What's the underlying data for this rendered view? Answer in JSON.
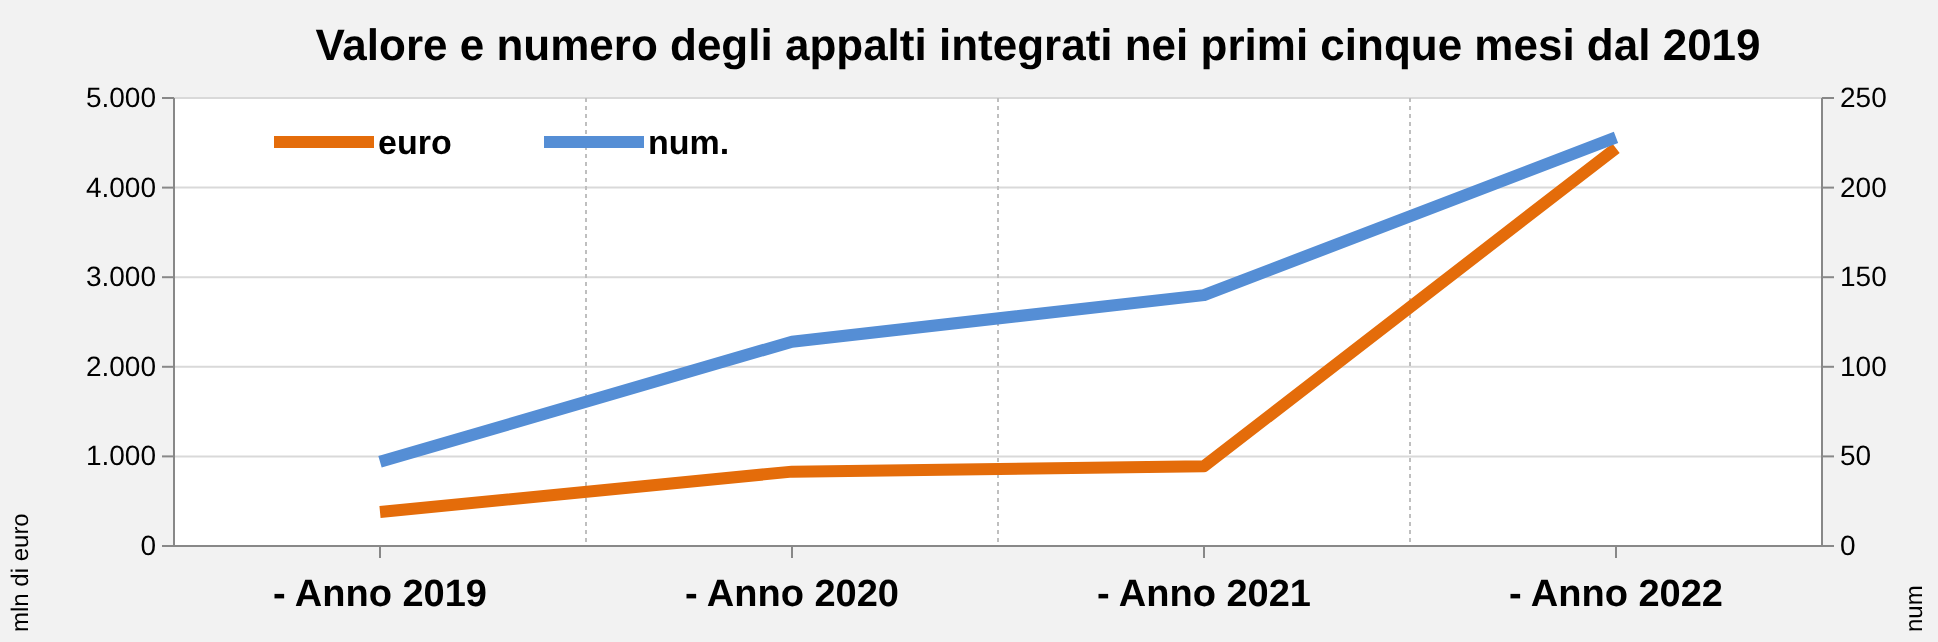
{
  "chart_data": {
    "type": "line",
    "title": "Valore e numero degli appalti integrati nei primi cinque mesi dal 2019",
    "ylabel": "mln di euro",
    "y2label": "num",
    "categories": [
      "- Anno 2019",
      "- Anno 2020",
      "- Anno 2021",
      "- Anno 2022"
    ],
    "series": [
      {
        "name": "euro",
        "color": "#e46c0a",
        "values": [
          380,
          830,
          890,
          4440
        ]
      },
      {
        "name": "num.",
        "color": "#558ed5",
        "axis": "y2",
        "values": [
          47,
          114,
          140,
          228
        ]
      }
    ],
    "ylim": [
      0,
      5000
    ],
    "yticks": [
      0,
      {
        "value": 1000,
        "label": "1.000"
      },
      {
        "value": 2000,
        "label": "2.000"
      },
      {
        "value": 3000,
        "label": "3.000"
      },
      {
        "value": 4000,
        "label": "4.000"
      },
      {
        "value": 5000,
        "label": "5.000"
      }
    ],
    "y2lim": [
      0,
      250
    ],
    "y2ticks": [
      0,
      50,
      100,
      150,
      200,
      250
    ],
    "grid": true,
    "legend": "top left",
    "marker": "none",
    "line_style": "solid"
  }
}
